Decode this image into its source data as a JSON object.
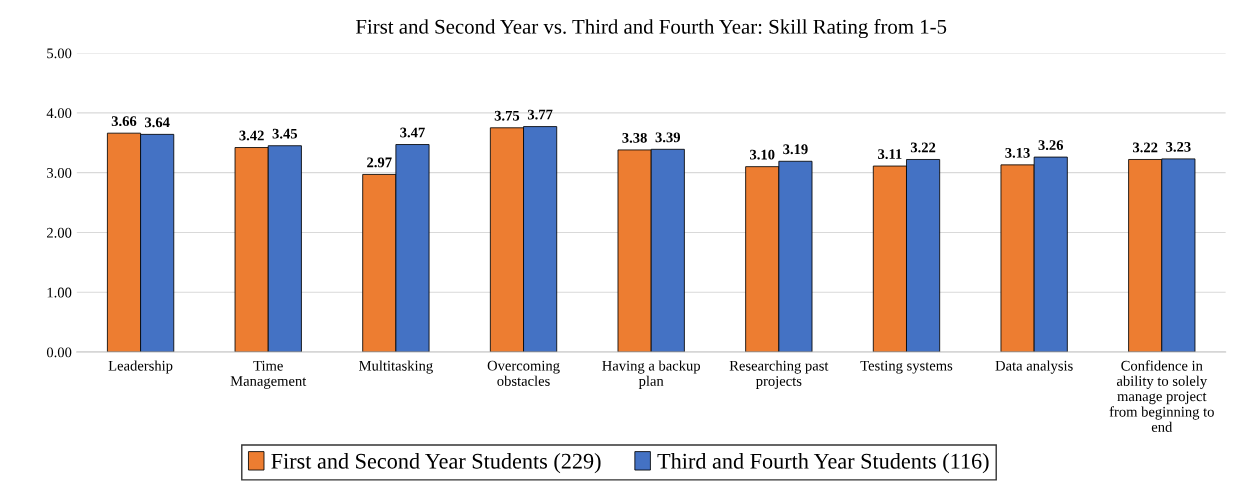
{
  "chart_data": {
    "type": "bar",
    "title": "First and Second Year vs. Third and Fourth Year: Skill Rating from 1-5",
    "categories": [
      "Leadership",
      "Time\nManagement",
      "Multitasking",
      "Overcoming\nobstacles",
      "Having a backup\nplan",
      "Researching past\nprojects",
      "Testing systems",
      "Data analysis",
      "Confidence in\nability to solely\nmanage project\nfrom beginning to\nend"
    ],
    "series": [
      {
        "name": "First and Second Year Students (229)",
        "color": "#ed7d31",
        "values": [
          3.66,
          3.42,
          2.97,
          3.75,
          3.38,
          3.1,
          3.11,
          3.13,
          3.22
        ]
      },
      {
        "name": "Third and Fourth Year Students (116)",
        "color": "#4472c4",
        "values": [
          3.64,
          3.45,
          3.47,
          3.77,
          3.39,
          3.19,
          3.22,
          3.26,
          3.23
        ]
      }
    ],
    "ylim": [
      0,
      5
    ],
    "yticks": [
      {
        "value": 0,
        "label": "0.00"
      },
      {
        "value": 1,
        "label": "1.00"
      },
      {
        "value": 2,
        "label": "2.00"
      },
      {
        "value": 3,
        "label": "3.00"
      },
      {
        "value": 4,
        "label": "4.00"
      },
      {
        "value": 5,
        "label": "5.00"
      }
    ],
    "value_labels": [
      [
        "3.66",
        "3.42",
        "2.97",
        "3.75",
        "3.38",
        "3.10",
        "3.11",
        "3.13",
        "3.22"
      ],
      [
        "3.64",
        "3.45",
        "3.47",
        "3.77",
        "3.39",
        "3.19",
        "3.22",
        "3.26",
        "3.23"
      ]
    ],
    "grid": "y",
    "legend": "bottom"
  }
}
